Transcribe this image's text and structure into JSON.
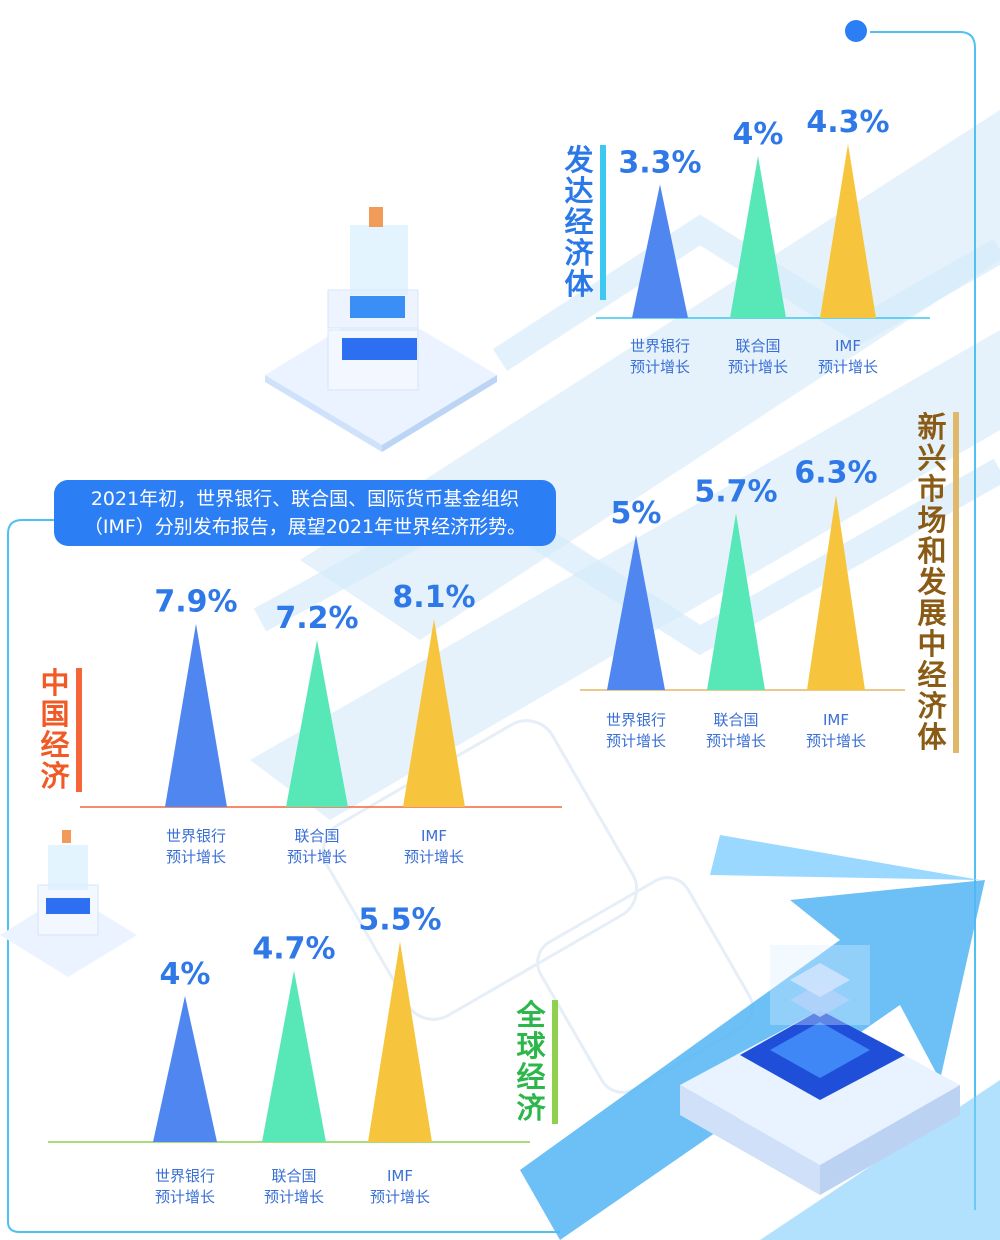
{
  "intro": {
    "line1": "2021年初，世界银行、联合国、国际货币基金组织",
    "line2": "（IMF）分别发布报告，展望2021年世界经济形势。"
  },
  "colors": {
    "world_bank": "#4f86f0",
    "un": "#58e8b8",
    "imf": "#f7c53d",
    "value_text": "#2f78e8"
  },
  "chart_data": [
    {
      "type": "bar",
      "title": "发达经济体",
      "categories": [
        "世界银行预计增长",
        "联合国预计增长",
        "IMF预计增长"
      ],
      "values": [
        3.3,
        4,
        4.3
      ],
      "value_labels": [
        "3.3%",
        "4%",
        "4.3%"
      ],
      "category_lines": [
        [
          "世界银行",
          "预计增长"
        ],
        [
          "联合国",
          "预计增长"
        ],
        [
          "IMF",
          "预计增长"
        ]
      ]
    },
    {
      "type": "bar",
      "title": "新兴市场和发展中经济体",
      "categories": [
        "世界银行预计增长",
        "联合国预计增长",
        "IMF预计增长"
      ],
      "values": [
        5,
        5.7,
        6.3
      ],
      "value_labels": [
        "5%",
        "5.7%",
        "6.3%"
      ],
      "category_lines": [
        [
          "世界银行",
          "预计增长"
        ],
        [
          "联合国",
          "预计增长"
        ],
        [
          "IMF",
          "预计增长"
        ]
      ]
    },
    {
      "type": "bar",
      "title": "中国经济",
      "categories": [
        "世界银行预计增长",
        "联合国预计增长",
        "IMF预计增长"
      ],
      "values": [
        7.9,
        7.2,
        8.1
      ],
      "value_labels": [
        "7.9%",
        "7.2%",
        "8.1%"
      ],
      "category_lines": [
        [
          "世界银行",
          "预计增长"
        ],
        [
          "联合国",
          "预计增长"
        ],
        [
          "IMF",
          "预计增长"
        ]
      ]
    },
    {
      "type": "bar",
      "title": "全球经济",
      "categories": [
        "世界银行预计增长",
        "联合国预计增长",
        "IMF预计增长"
      ],
      "values": [
        4,
        4.7,
        5.5
      ],
      "value_labels": [
        "4%",
        "4.7%",
        "5.5%"
      ],
      "category_lines": [
        [
          "世界银行",
          "预计增长"
        ],
        [
          "联合国",
          "预计增长"
        ],
        [
          "IMF",
          "预计增长"
        ]
      ]
    }
  ]
}
